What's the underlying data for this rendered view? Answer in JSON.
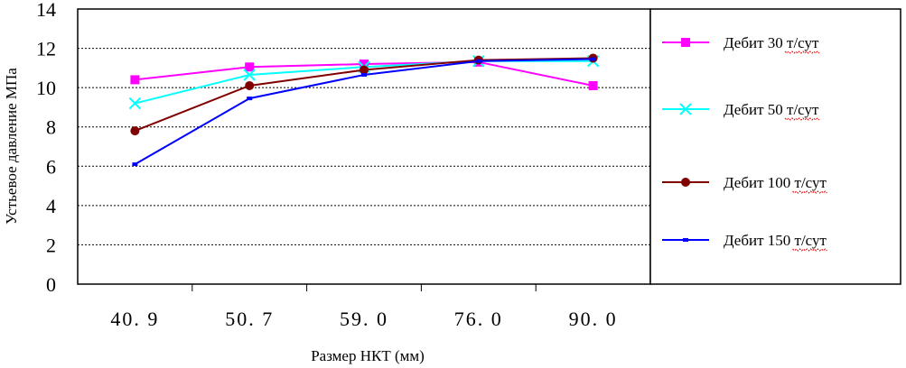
{
  "chart_data": {
    "type": "line",
    "categories": [
      "40. 9",
      "50. 7",
      "59. 0",
      "76. 0",
      "90. 0"
    ],
    "xlabel": "Размер НКТ (мм)",
    "ylabel": "Устьевое давление МПа",
    "ylim": [
      0,
      14
    ],
    "yticks": [
      "0",
      "2",
      "4",
      "6",
      "8",
      "10",
      "12",
      "14"
    ],
    "grid": "horizontal dotted",
    "legend_position": "right",
    "series": [
      {
        "name": "Дебит 30 т/сут",
        "color": "#ff00ff",
        "marker": "square",
        "values": [
          10.4,
          11.05,
          11.2,
          11.3,
          10.1
        ]
      },
      {
        "name": "Дебит 50 т/сут",
        "color": "#00ffff",
        "marker": "x",
        "values": [
          9.2,
          10.65,
          11.05,
          11.35,
          11.35
        ]
      },
      {
        "name": "Дебит 100 т/сут",
        "color": "#800000",
        "marker": "circle",
        "values": [
          7.8,
          10.1,
          10.9,
          11.4,
          11.5
        ]
      },
      {
        "name": "Дебит 150 т/сут",
        "color": "#0000ff",
        "marker": "dash",
        "values": [
          6.1,
          9.45,
          10.65,
          11.35,
          11.45
        ]
      }
    ]
  }
}
